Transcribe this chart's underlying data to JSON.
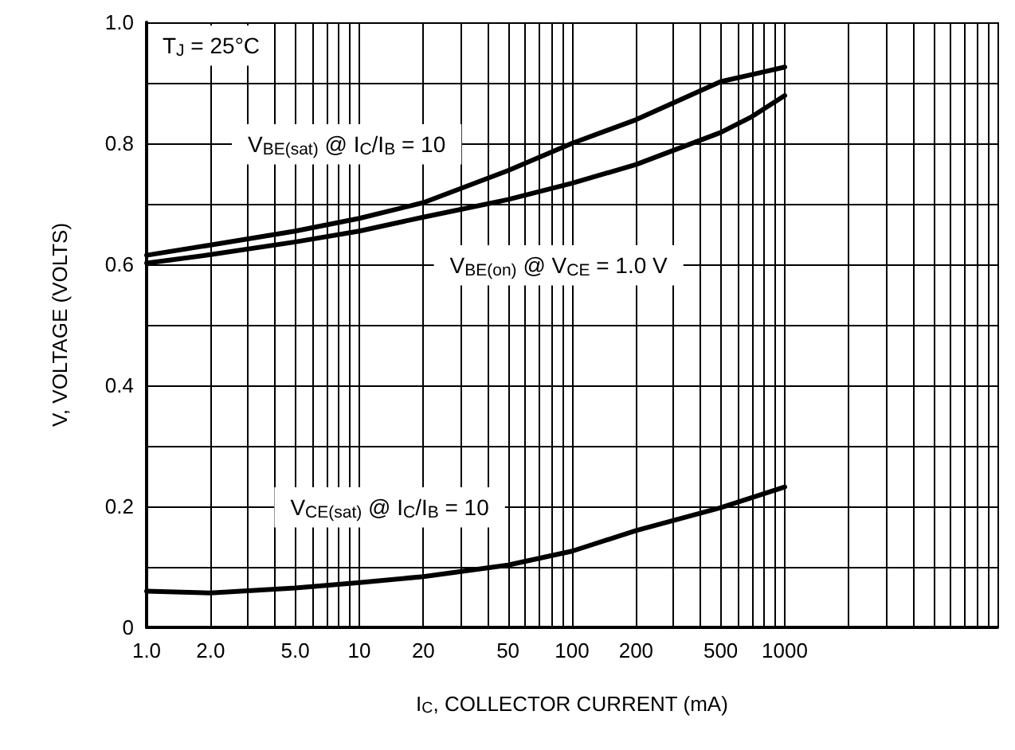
{
  "chart_data": {
    "type": "line",
    "xlabel": "I$_{C}$, COLLECTOR CURRENT (mA)",
    "ylabel": "V, VOLTAGE (VOLTS)",
    "annotations": [
      "T$_{J}$ = 25°C"
    ],
    "series": [
      {
        "name": "V$_{BE(sat)}$ @ I$_{C}$/I$_{B}$ = 10",
        "color": "#000000",
        "x": [
          1,
          2,
          5,
          10,
          20,
          50,
          100,
          200,
          500,
          750,
          1000
        ],
        "values": [
          0.615,
          0.632,
          0.655,
          0.676,
          0.702,
          0.755,
          0.8,
          0.839,
          0.902,
          0.916,
          0.926
        ]
      },
      {
        "name": "V$_{BE(on)}$ @ V$_{CE}$ = 1.0 V",
        "color": "#000000",
        "x": [
          1,
          2,
          5,
          10,
          20,
          50,
          100,
          200,
          500,
          700,
          1000
        ],
        "values": [
          0.602,
          0.616,
          0.637,
          0.655,
          0.678,
          0.707,
          0.734,
          0.765,
          0.818,
          0.844,
          0.879
        ]
      },
      {
        "name": "V$_{CE(sat)}$ @ I$_{C}$/I$_{B}$ = 10",
        "color": "#000000",
        "x": [
          1,
          2,
          5,
          10,
          20,
          50,
          100,
          200,
          500,
          1000
        ],
        "values": [
          0.06,
          0.057,
          0.065,
          0.074,
          0.084,
          0.103,
          0.126,
          0.16,
          0.198,
          0.232
        ]
      }
    ],
    "log": "x",
    "xlim": [
      1,
      10000
    ],
    "xticks": [
      {
        "value": 1,
        "label": "1.0"
      },
      {
        "value": 2,
        "label": "2.0"
      },
      {
        "value": 3,
        "label": null
      },
      {
        "value": 4,
        "label": null
      },
      {
        "value": 5,
        "label": "5.0"
      },
      {
        "value": 6,
        "label": null
      },
      {
        "value": 7,
        "label": null
      },
      {
        "value": 8,
        "label": null
      },
      {
        "value": 9,
        "label": null
      },
      10,
      20,
      {
        "value": 30,
        "label": null
      },
      {
        "value": 40,
        "label": null
      },
      50,
      {
        "value": 60,
        "label": null
      },
      {
        "value": 70,
        "label": null
      },
      {
        "value": 80,
        "label": null
      },
      {
        "value": 90,
        "label": null
      },
      100,
      200,
      {
        "value": 300,
        "label": null
      },
      {
        "value": 400,
        "label": null
      },
      500,
      {
        "value": 600,
        "label": null
      },
      {
        "value": 700,
        "label": null
      },
      {
        "value": 800,
        "label": null
      },
      {
        "value": 900,
        "label": null
      },
      1000,
      {
        "value": 2000,
        "label": null
      },
      {
        "value": 3000,
        "label": null
      },
      {
        "value": 4000,
        "label": null
      },
      {
        "value": 5000,
        "label": null
      },
      {
        "value": 6000,
        "label": null
      },
      {
        "value": 7000,
        "label": null
      },
      {
        "value": 8000,
        "label": null
      },
      {
        "value": 9000,
        "label": null
      },
      {
        "value": 10000,
        "label": null
      }
    ],
    "ylim": [
      0,
      1
    ],
    "yticks": [
      0,
      {
        "value": 0.1,
        "label": null
      },
      0.2,
      {
        "value": 0.3,
        "label": null
      },
      0.4,
      {
        "value": 0.5,
        "label": null
      },
      0.6,
      {
        "value": 0.7,
        "label": null
      },
      0.8,
      {
        "value": 0.9,
        "label": null
      },
      {
        "value": 1,
        "label": "1.0"
      }
    ],
    "grid": true,
    "marker": "none",
    "line_style": "solid"
  }
}
